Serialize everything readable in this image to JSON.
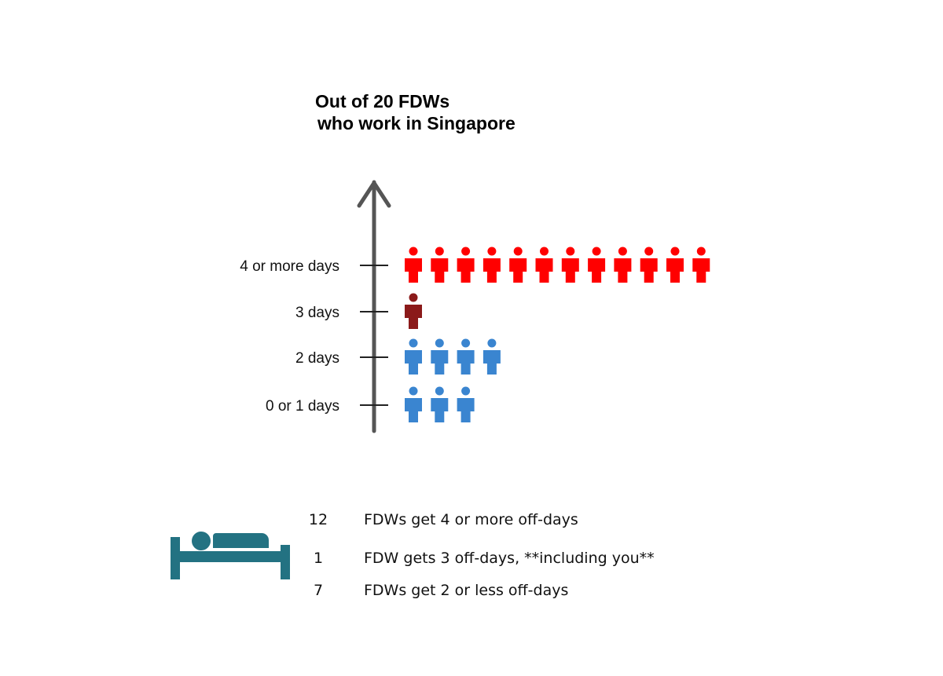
{
  "title_line1": "Out of 20 FDWs",
  "title_line2": "who work in Singapore",
  "chart_data": {
    "type": "pictograph",
    "categories": [
      "4 or more days",
      "3 days",
      "2 days",
      "0 or 1 days"
    ],
    "values": [
      12,
      1,
      4,
      3
    ],
    "colors": [
      "#ff0000",
      "#8b1a1a",
      "#3a85d0",
      "#3a85d0"
    ]
  },
  "summary": [
    {
      "count": "12",
      "text": "FDWs get 4 or more off-days"
    },
    {
      "count": "1",
      "text": "FDW gets 3 off-days, **including you**"
    },
    {
      "count": "7",
      "text": "FDWs get 2 or less off-days"
    }
  ],
  "icon": "bed-icon",
  "icon_color": "#237282"
}
